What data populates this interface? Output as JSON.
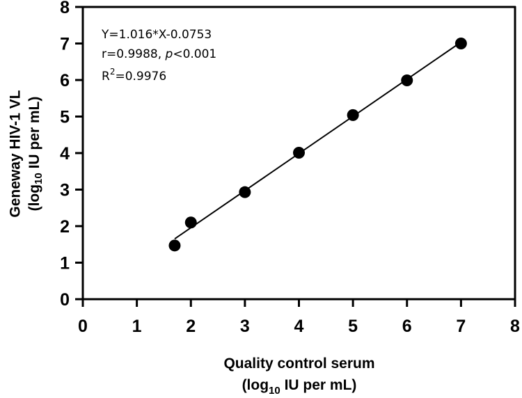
{
  "chart_data": {
    "type": "scatter",
    "xlabel": {
      "line1": "Quality control serum",
      "line2_prefix": "(log",
      "line2_sub": "10",
      "line2_suffix": " IU per mL)"
    },
    "ylabel": {
      "line1": "Geneway HIV-1 VL",
      "line2_prefix": "(log",
      "line2_sub": "10",
      "line2_suffix": " IU per mL)"
    },
    "xlim": [
      0,
      8
    ],
    "ylim": [
      0,
      8
    ],
    "xticks": [
      "0",
      "1",
      "2",
      "3",
      "4",
      "5",
      "6",
      "7",
      "8"
    ],
    "yticks": [
      "0",
      "1",
      "2",
      "3",
      "4",
      "5",
      "6",
      "7",
      "8"
    ],
    "grid": false,
    "points": [
      {
        "x": 1.7,
        "y": 1.47
      },
      {
        "x": 2.0,
        "y": 2.1
      },
      {
        "x": 3.0,
        "y": 2.93
      },
      {
        "x": 4.0,
        "y": 4.01
      },
      {
        "x": 5.0,
        "y": 5.04
      },
      {
        "x": 6.0,
        "y": 5.99
      },
      {
        "x": 7.0,
        "y": 7.0
      }
    ],
    "fit_line": {
      "slope": 1.016,
      "intercept": -0.0753,
      "x_range": [
        1.7,
        7.0
      ]
    },
    "annotations": {
      "equation": "Y=1.016*X-0.0753",
      "r_text": "r=0.9988, ",
      "p_symbol": "p",
      "p_text": "<0.001",
      "r2_prefix": "R",
      "r2_sup": "2",
      "r2_text": "=0.9976"
    },
    "colors": {
      "points": "#000000",
      "line": "#000000",
      "axes": "#000000"
    }
  }
}
